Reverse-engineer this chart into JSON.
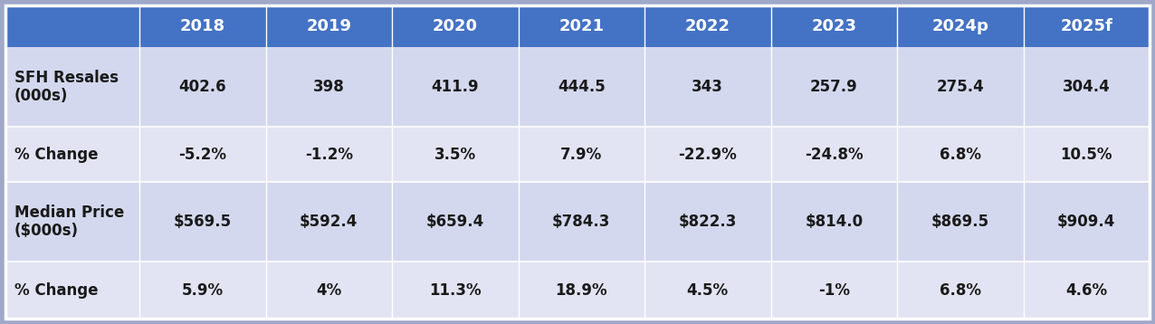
{
  "columns": [
    "",
    "2018",
    "2019",
    "2020",
    "2021",
    "2022",
    "2023",
    "2024p",
    "2025f"
  ],
  "rows": [
    [
      "SFH Resales\n(000s)",
      "402.6",
      "398",
      "411.9",
      "444.5",
      "343",
      "257.9",
      "275.4",
      "304.4"
    ],
    [
      "% Change",
      "-5.2%",
      "-1.2%",
      "3.5%",
      "7.9%",
      "-22.9%",
      "-24.8%",
      "6.8%",
      "10.5%"
    ],
    [
      "Median Price\n($000s)",
      "$569.5",
      "$592.4",
      "$659.4",
      "$784.3",
      "$822.3",
      "$814.0",
      "$869.5",
      "$909.4"
    ],
    [
      "% Change",
      "5.9%",
      "4%",
      "11.3%",
      "18.9%",
      "4.5%",
      "-1%",
      "6.8%",
      "4.6%"
    ]
  ],
  "header_bg": "#4472c4",
  "header_text": "#ffffff",
  "row0_bg": "#d4d8ee",
  "row1_bg": "#e2e4f3",
  "row2_bg": "#d4d8ee",
  "row3_bg": "#e2e4f3",
  "cell_text_color": "#1a1a1a",
  "outer_bg": "#9fa8c8",
  "header_fontsize": 13,
  "cell_fontsize": 12,
  "label_fontsize": 12,
  "fig_width": 12.76,
  "fig_height": 3.58,
  "dpi": 100
}
